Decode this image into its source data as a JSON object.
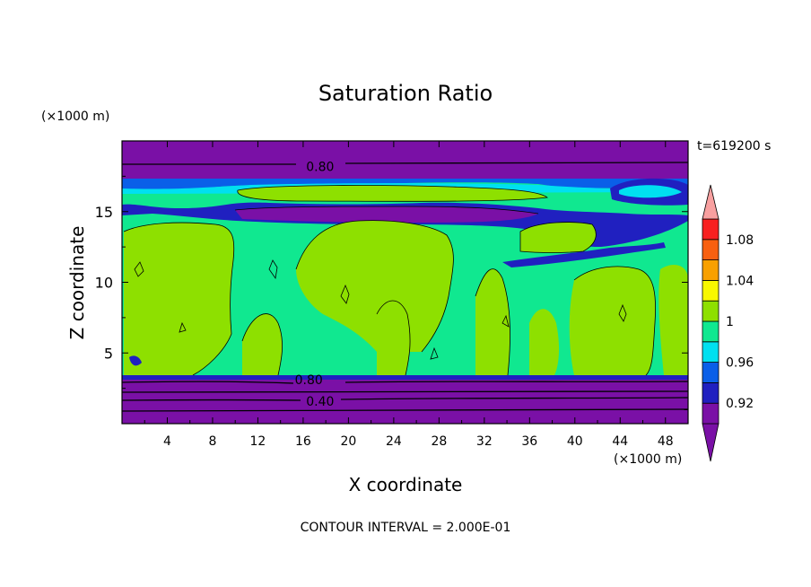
{
  "chart_data": {
    "type": "heatmap",
    "title": "Saturation Ratio",
    "xlabel": "X coordinate",
    "ylabel": "Z coordinate",
    "x_unit": "(×1000 m)",
    "y_unit": "(×1000 m)",
    "time_label": "t=619200 s",
    "footer": "CONTOUR INTERVAL = 2.000E-01",
    "xlim": [
      0,
      50
    ],
    "ylim": [
      0,
      20
    ],
    "x_ticks": [
      4,
      8,
      12,
      16,
      20,
      24,
      28,
      32,
      36,
      40,
      44,
      48
    ],
    "y_ticks": [
      5,
      10,
      15
    ],
    "contour_labels": [
      {
        "text": "0.80",
        "x": 17.5,
        "z": 18.2
      },
      {
        "text": "0.80",
        "x": 16.5,
        "z": 3.1
      },
      {
        "text": "0.40",
        "x": 17.5,
        "z": 1.6
      }
    ],
    "colorbar": {
      "levels": [
        0.9,
        0.92,
        0.94,
        0.96,
        0.98,
        1.0,
        1.02,
        1.04,
        1.06,
        1.08,
        1.1
      ],
      "tick_labels": [
        "0.92",
        "0.96",
        "1",
        "1.04",
        "1.08"
      ],
      "colors": [
        "#7a10a6",
        "#2020c0",
        "#0a5fe8",
        "#00e0f0",
        "#10e890",
        "#8ee000",
        "#f8f800",
        "#f8a000",
        "#f86010",
        "#f82020",
        "#f8a0a0"
      ]
    },
    "field_bands": [
      {
        "z_from": 0.0,
        "z_to": 3.3,
        "value": "< 0.92"
      },
      {
        "z_from": 3.3,
        "z_to": 14.0,
        "value": "0.98 – 1.00 with many regions 1.00 – 1.02"
      },
      {
        "z_from": 14.0,
        "z_to": 15.5,
        "value": "< 0.92"
      },
      {
        "z_from": 15.5,
        "z_to": 17.5,
        "value": "0.94 – 1.02"
      },
      {
        "z_from": 17.5,
        "z_to": 20.0,
        "value": "< 0.92"
      }
    ]
  }
}
